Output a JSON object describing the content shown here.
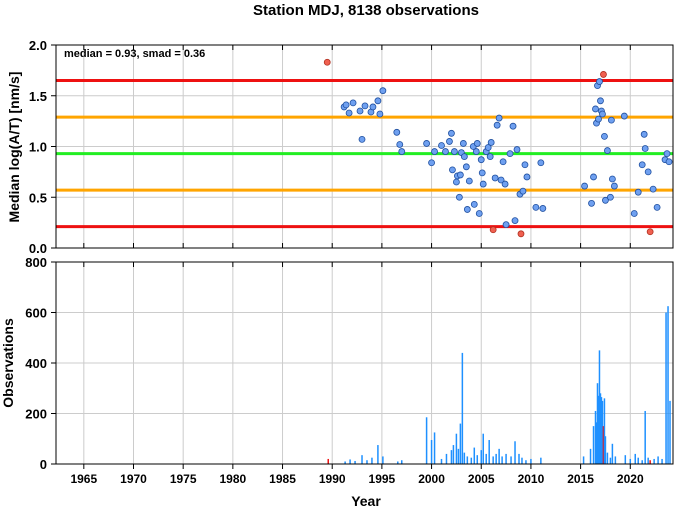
{
  "title": "Station MDJ, 8138 observations",
  "colors": {
    "red": "#ee1111",
    "orange": "#ffa500",
    "green": "#22ee22",
    "point_fill": "#6fa0f0",
    "outlier_fill": "#f06050",
    "bar": "#1e90ff",
    "bar_red": "#ee1111",
    "grid": "#cccccc"
  },
  "chart_data": [
    {
      "type": "scatter",
      "annotation": "median = 0.93, smad = 0.36",
      "xlabel": "",
      "ylabel": "Median log(A/T) [nm/s]",
      "xlim": [
        1962.2,
        2024.3
      ],
      "ylim": [
        0.0,
        2.0
      ],
      "yticks": [
        "0.0",
        "0.5",
        "1.0",
        "1.5",
        "2.0"
      ],
      "grid": true,
      "hlines": [
        {
          "y": 1.65,
          "color": "red"
        },
        {
          "y": 1.29,
          "color": "orange"
        },
        {
          "y": 0.93,
          "color": "green"
        },
        {
          "y": 0.57,
          "color": "orange"
        },
        {
          "y": 0.21,
          "color": "red"
        }
      ],
      "points": [
        {
          "x": 1989.5,
          "y": 1.83,
          "outlier": true
        },
        {
          "x": 1991.2,
          "y": 1.39
        },
        {
          "x": 1991.4,
          "y": 1.41
        },
        {
          "x": 1991.7,
          "y": 1.33
        },
        {
          "x": 1992.1,
          "y": 1.43
        },
        {
          "x": 1992.8,
          "y": 1.35
        },
        {
          "x": 1993.0,
          "y": 1.07
        },
        {
          "x": 1993.3,
          "y": 1.4
        },
        {
          "x": 1993.9,
          "y": 1.34
        },
        {
          "x": 1994.1,
          "y": 1.39
        },
        {
          "x": 1994.6,
          "y": 1.45
        },
        {
          "x": 1994.8,
          "y": 1.32
        },
        {
          "x": 1995.1,
          "y": 1.55
        },
        {
          "x": 1996.5,
          "y": 1.14
        },
        {
          "x": 1996.8,
          "y": 1.02
        },
        {
          "x": 1997.0,
          "y": 0.95
        },
        {
          "x": 1999.5,
          "y": 1.03
        },
        {
          "x": 2000.0,
          "y": 0.84
        },
        {
          "x": 2000.3,
          "y": 0.95
        },
        {
          "x": 2001.0,
          "y": 1.01
        },
        {
          "x": 2001.4,
          "y": 0.95
        },
        {
          "x": 2001.8,
          "y": 1.05
        },
        {
          "x": 2002.0,
          "y": 1.13
        },
        {
          "x": 2002.1,
          "y": 0.77
        },
        {
          "x": 2002.3,
          "y": 0.95
        },
        {
          "x": 2002.5,
          "y": 0.65
        },
        {
          "x": 2002.6,
          "y": 0.71
        },
        {
          "x": 2002.8,
          "y": 0.5
        },
        {
          "x": 2002.9,
          "y": 0.72
        },
        {
          "x": 2003.0,
          "y": 0.94
        },
        {
          "x": 2003.2,
          "y": 1.03
        },
        {
          "x": 2003.3,
          "y": 0.9
        },
        {
          "x": 2003.5,
          "y": 0.8
        },
        {
          "x": 2003.6,
          "y": 0.38
        },
        {
          "x": 2003.8,
          "y": 0.66
        },
        {
          "x": 2004.2,
          "y": 1.0
        },
        {
          "x": 2004.3,
          "y": 0.43
        },
        {
          "x": 2004.5,
          "y": 0.95
        },
        {
          "x": 2004.6,
          "y": 1.03
        },
        {
          "x": 2004.8,
          "y": 0.34
        },
        {
          "x": 2005.0,
          "y": 0.87
        },
        {
          "x": 2005.1,
          "y": 0.74
        },
        {
          "x": 2005.2,
          "y": 0.63
        },
        {
          "x": 2005.5,
          "y": 0.95
        },
        {
          "x": 2005.7,
          "y": 0.99
        },
        {
          "x": 2005.9,
          "y": 0.9
        },
        {
          "x": 2006.0,
          "y": 1.04
        },
        {
          "x": 2006.2,
          "y": 0.18,
          "outlier": true
        },
        {
          "x": 2006.4,
          "y": 0.69
        },
        {
          "x": 2006.6,
          "y": 1.21
        },
        {
          "x": 2006.8,
          "y": 1.28
        },
        {
          "x": 2007.0,
          "y": 0.67
        },
        {
          "x": 2007.2,
          "y": 0.85
        },
        {
          "x": 2007.4,
          "y": 0.63
        },
        {
          "x": 2007.5,
          "y": 0.23
        },
        {
          "x": 2007.9,
          "y": 0.93
        },
        {
          "x": 2008.2,
          "y": 1.2
        },
        {
          "x": 2008.4,
          "y": 0.27
        },
        {
          "x": 2008.6,
          "y": 0.97
        },
        {
          "x": 2008.9,
          "y": 0.53
        },
        {
          "x": 2009.0,
          "y": 0.14,
          "outlier": true
        },
        {
          "x": 2009.2,
          "y": 0.56
        },
        {
          "x": 2009.4,
          "y": 0.82
        },
        {
          "x": 2009.6,
          "y": 0.7
        },
        {
          "x": 2010.5,
          "y": 0.4
        },
        {
          "x": 2011.0,
          "y": 0.84
        },
        {
          "x": 2011.2,
          "y": 0.39
        },
        {
          "x": 2015.4,
          "y": 0.61
        },
        {
          "x": 2016.1,
          "y": 0.44
        },
        {
          "x": 2016.3,
          "y": 0.7
        },
        {
          "x": 2016.5,
          "y": 1.37
        },
        {
          "x": 2016.6,
          "y": 1.23
        },
        {
          "x": 2016.7,
          "y": 1.6
        },
        {
          "x": 2016.8,
          "y": 1.27
        },
        {
          "x": 2016.9,
          "y": 1.64
        },
        {
          "x": 2017.0,
          "y": 1.45
        },
        {
          "x": 2017.1,
          "y": 1.35
        },
        {
          "x": 2017.2,
          "y": 1.32
        },
        {
          "x": 2017.3,
          "y": 1.71,
          "outlier": true
        },
        {
          "x": 2017.4,
          "y": 1.1
        },
        {
          "x": 2017.5,
          "y": 0.47
        },
        {
          "x": 2017.7,
          "y": 0.96
        },
        {
          "x": 2018.0,
          "y": 0.5
        },
        {
          "x": 2018.1,
          "y": 1.26
        },
        {
          "x": 2018.2,
          "y": 0.68
        },
        {
          "x": 2018.4,
          "y": 0.61
        },
        {
          "x": 2019.4,
          "y": 1.3
        },
        {
          "x": 2020.4,
          "y": 0.34
        },
        {
          "x": 2020.8,
          "y": 0.55
        },
        {
          "x": 2021.2,
          "y": 0.82
        },
        {
          "x": 2021.4,
          "y": 1.12
        },
        {
          "x": 2021.5,
          "y": 0.98
        },
        {
          "x": 2021.8,
          "y": 0.75
        },
        {
          "x": 2022.0,
          "y": 0.16,
          "outlier": true
        },
        {
          "x": 2022.3,
          "y": 0.58
        },
        {
          "x": 2022.7,
          "y": 0.4
        },
        {
          "x": 2023.5,
          "y": 0.87
        },
        {
          "x": 2023.7,
          "y": 0.93
        },
        {
          "x": 2023.9,
          "y": 0.85
        }
      ]
    },
    {
      "type": "bar",
      "xlabel": "Year",
      "ylabel": "Observations",
      "xlim": [
        1962.2,
        2024.3
      ],
      "ylim": [
        0,
        800
      ],
      "xticks": [
        "1965",
        "1970",
        "1975",
        "1980",
        "1985",
        "1990",
        "1995",
        "2000",
        "2005",
        "2010",
        "2015",
        "2020"
      ],
      "yticks": [
        "0",
        "200",
        "400",
        "600",
        "800"
      ],
      "grid": true,
      "bars": [
        {
          "x": 1989.6,
          "y": 20,
          "red": true
        },
        {
          "x": 1991.3,
          "y": 10
        },
        {
          "x": 1991.8,
          "y": 18
        },
        {
          "x": 1992.3,
          "y": 12
        },
        {
          "x": 1993.0,
          "y": 35
        },
        {
          "x": 1993.5,
          "y": 15
        },
        {
          "x": 1994.0,
          "y": 25
        },
        {
          "x": 1994.6,
          "y": 75
        },
        {
          "x": 1995.1,
          "y": 30
        },
        {
          "x": 1996.6,
          "y": 10
        },
        {
          "x": 1997.0,
          "y": 15
        },
        {
          "x": 1999.5,
          "y": 185
        },
        {
          "x": 2000.0,
          "y": 95
        },
        {
          "x": 2000.3,
          "y": 125
        },
        {
          "x": 2001.0,
          "y": 20
        },
        {
          "x": 2001.5,
          "y": 40
        },
        {
          "x": 2002.0,
          "y": 55
        },
        {
          "x": 2002.2,
          "y": 75
        },
        {
          "x": 2002.5,
          "y": 120
        },
        {
          "x": 2002.7,
          "y": 60
        },
        {
          "x": 2002.9,
          "y": 160
        },
        {
          "x": 2003.1,
          "y": 440
        },
        {
          "x": 2003.3,
          "y": 45
        },
        {
          "x": 2003.6,
          "y": 30
        },
        {
          "x": 2004.0,
          "y": 25
        },
        {
          "x": 2004.3,
          "y": 65
        },
        {
          "x": 2004.6,
          "y": 35
        },
        {
          "x": 2005.0,
          "y": 55
        },
        {
          "x": 2005.2,
          "y": 120
        },
        {
          "x": 2005.5,
          "y": 40
        },
        {
          "x": 2005.8,
          "y": 95
        },
        {
          "x": 2006.2,
          "y": 30
        },
        {
          "x": 2006.5,
          "y": 40
        },
        {
          "x": 2006.8,
          "y": 60
        },
        {
          "x": 2007.1,
          "y": 30
        },
        {
          "x": 2007.5,
          "y": 40
        },
        {
          "x": 2008.0,
          "y": 30
        },
        {
          "x": 2008.4,
          "y": 90
        },
        {
          "x": 2008.8,
          "y": 40
        },
        {
          "x": 2009.1,
          "y": 25
        },
        {
          "x": 2009.5,
          "y": 15
        },
        {
          "x": 2010.0,
          "y": 20
        },
        {
          "x": 2011.0,
          "y": 25
        },
        {
          "x": 2015.3,
          "y": 30
        },
        {
          "x": 2016.0,
          "y": 60
        },
        {
          "x": 2016.3,
          "y": 150
        },
        {
          "x": 2016.5,
          "y": 210
        },
        {
          "x": 2016.6,
          "y": 165
        },
        {
          "x": 2016.7,
          "y": 320
        },
        {
          "x": 2016.8,
          "y": 270
        },
        {
          "x": 2016.9,
          "y": 450
        },
        {
          "x": 2017.0,
          "y": 280
        },
        {
          "x": 2017.1,
          "y": 265
        },
        {
          "x": 2017.2,
          "y": 250
        },
        {
          "x": 2017.3,
          "y": 150,
          "red": true
        },
        {
          "x": 2017.4,
          "y": 260
        },
        {
          "x": 2017.5,
          "y": 110
        },
        {
          "x": 2017.7,
          "y": 45
        },
        {
          "x": 2018.0,
          "y": 25
        },
        {
          "x": 2018.2,
          "y": 80
        },
        {
          "x": 2018.5,
          "y": 30
        },
        {
          "x": 2019.5,
          "y": 35
        },
        {
          "x": 2020.0,
          "y": 20
        },
        {
          "x": 2020.5,
          "y": 40
        },
        {
          "x": 2020.8,
          "y": 25
        },
        {
          "x": 2021.2,
          "y": 15
        },
        {
          "x": 2021.5,
          "y": 210
        },
        {
          "x": 2021.8,
          "y": 25
        },
        {
          "x": 2022.0,
          "y": 15,
          "red": true
        },
        {
          "x": 2022.4,
          "y": 20
        },
        {
          "x": 2022.8,
          "y": 30
        },
        {
          "x": 2023.2,
          "y": 20
        },
        {
          "x": 2023.6,
          "y": 600
        },
        {
          "x": 2023.8,
          "y": 625
        },
        {
          "x": 2024.0,
          "y": 250
        }
      ]
    }
  ]
}
